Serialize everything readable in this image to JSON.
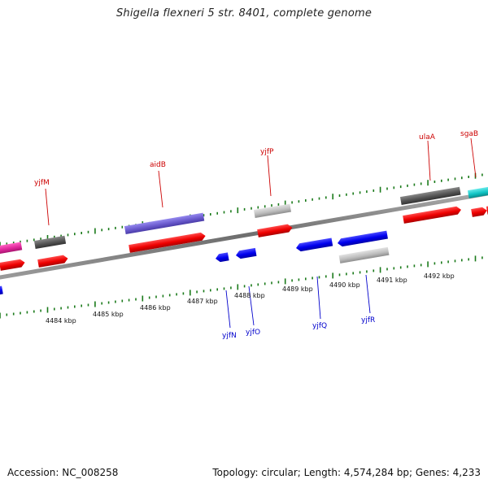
{
  "title": "Shigella flexneri 5 str. 8401, complete genome",
  "accession": "Accession: NC_008258",
  "topology": "Topology: circular; Length: 4,574,284 bp; Genes: 4,233",
  "scale_labels": [
    "4484 kbp",
    "4485 kbp",
    "4486 kbp",
    "4487 kbp",
    "4488 kbp",
    "4489 kbp",
    "4490 kbp",
    "4491 kbp",
    "4492 kbp"
  ],
  "forward_gene_labels": [
    "yjfM",
    "aidB",
    "yjfP",
    "ulaA",
    "sgaB"
  ],
  "reverse_gene_labels": [
    "yjfN",
    "yjfO",
    "yjfQ",
    "yjfR"
  ],
  "colors": {
    "forward_label": "#cc0000",
    "reverse_label": "#0000cc",
    "tick": "#1a7a1a",
    "backbone": "#808080",
    "cds": "#ee0000",
    "blue_cds": "#0000ee",
    "dark_gray": "#555555",
    "light_gray": "#bdbdbd",
    "purple": "#6a5acd",
    "magenta": "#e0289c",
    "cyan": "#11c4c4"
  }
}
